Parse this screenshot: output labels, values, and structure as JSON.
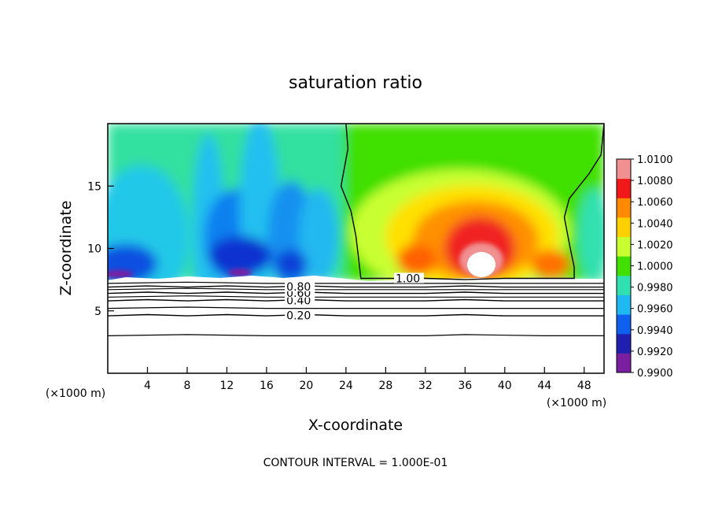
{
  "chart_data": {
    "type": "heatmap",
    "title": "saturation ratio",
    "xlabel": "X-coordinate",
    "ylabel": "Z-coordinate",
    "x_unit_left": "(×1000 m)",
    "x_unit_right": "(×1000 m)",
    "xlim": [
      0,
      50
    ],
    "ylim": [
      0,
      20
    ],
    "x_ticks": [
      4,
      8,
      12,
      16,
      20,
      24,
      28,
      32,
      36,
      40,
      44,
      48
    ],
    "y_ticks": [
      5,
      10,
      15
    ],
    "footer": "CONTOUR INTERVAL = 1.000E-01",
    "colorbar": {
      "levels": [
        "1.0100",
        "1.0080",
        "1.0060",
        "1.0040",
        "1.0020",
        "1.0000",
        "0.9980",
        "0.9960",
        "0.9940",
        "0.9920",
        "0.9900"
      ],
      "colors": [
        "#7a1fa0",
        "#2020b0",
        "#1060f0",
        "#20b8f0",
        "#30e0b0",
        "#40e000",
        "#c8ff30",
        "#ffd000",
        "#ff8a00",
        "#f01818",
        "#f09090"
      ]
    },
    "contours": [
      {
        "label": "0.20",
        "x_label": 18,
        "points": [
          [
            0,
            4.6
          ],
          [
            4,
            4.7
          ],
          [
            8,
            4.6
          ],
          [
            12,
            4.7
          ],
          [
            16,
            4.6
          ],
          [
            20,
            4.7
          ],
          [
            24,
            4.6
          ],
          [
            28,
            4.6
          ],
          [
            32,
            4.6
          ],
          [
            36,
            4.7
          ],
          [
            40,
            4.6
          ],
          [
            44,
            4.6
          ],
          [
            48,
            4.6
          ],
          [
            50,
            4.6
          ]
        ]
      },
      {
        "label": "0.40",
        "x_label": 18,
        "points": [
          [
            0,
            5.8
          ],
          [
            4,
            5.9
          ],
          [
            8,
            5.8
          ],
          [
            12,
            5.9
          ],
          [
            16,
            5.8
          ],
          [
            20,
            5.9
          ],
          [
            24,
            5.8
          ],
          [
            28,
            5.8
          ],
          [
            32,
            5.8
          ],
          [
            36,
            5.9
          ],
          [
            40,
            5.8
          ],
          [
            44,
            5.8
          ],
          [
            48,
            5.8
          ],
          [
            50,
            5.8
          ]
        ]
      },
      {
        "label": "0.60",
        "x_label": 18,
        "points": [
          [
            0,
            6.4
          ],
          [
            4,
            6.5
          ],
          [
            8,
            6.4
          ],
          [
            12,
            6.5
          ],
          [
            16,
            6.4
          ],
          [
            20,
            6.5
          ],
          [
            24,
            6.4
          ],
          [
            28,
            6.4
          ],
          [
            32,
            6.4
          ],
          [
            36,
            6.5
          ],
          [
            40,
            6.4
          ],
          [
            44,
            6.4
          ],
          [
            48,
            6.4
          ],
          [
            50,
            6.4
          ]
        ]
      },
      {
        "label": "0.80",
        "x_label": 18,
        "points": [
          [
            0,
            6.9
          ],
          [
            4,
            7.0
          ],
          [
            8,
            6.9
          ],
          [
            12,
            7.0
          ],
          [
            16,
            6.9
          ],
          [
            20,
            7.0
          ],
          [
            24,
            6.9
          ],
          [
            28,
            6.9
          ],
          [
            32,
            6.9
          ],
          [
            36,
            7.0
          ],
          [
            40,
            6.9
          ],
          [
            44,
            6.9
          ],
          [
            48,
            6.9
          ],
          [
            50,
            6.9
          ]
        ]
      },
      {
        "label": "1.00",
        "x_label": 29,
        "points": [
          [
            24,
            20
          ],
          [
            24.2,
            18
          ],
          [
            23.5,
            15
          ],
          [
            24.5,
            13
          ],
          [
            25,
            11
          ],
          [
            25.3,
            9
          ],
          [
            25.5,
            7.6
          ],
          [
            28,
            7.6
          ],
          [
            32,
            7.6
          ],
          [
            36,
            7.5
          ],
          [
            40,
            7.6
          ],
          [
            44,
            7.6
          ],
          [
            47,
            7.6
          ],
          [
            47,
            8.5
          ],
          [
            46.6,
            10
          ],
          [
            46,
            12.5
          ],
          [
            46.5,
            14
          ],
          [
            47.5,
            15
          ],
          [
            48.5,
            16
          ],
          [
            49.7,
            17.5
          ],
          [
            50,
            20
          ]
        ]
      }
    ],
    "unlabeled_contours": [
      {
        "points": [
          [
            0,
            3.0
          ],
          [
            8,
            3.1
          ],
          [
            16,
            3.0
          ],
          [
            24,
            3.0
          ],
          [
            32,
            3.0
          ],
          [
            36,
            3.1
          ],
          [
            44,
            3.0
          ],
          [
            50,
            3.0
          ]
        ]
      },
      {
        "points": [
          [
            0,
            5.2
          ],
          [
            8,
            5.3
          ],
          [
            16,
            5.2
          ],
          [
            24,
            5.2
          ],
          [
            32,
            5.2
          ],
          [
            40,
            5.2
          ],
          [
            50,
            5.2
          ]
        ]
      },
      {
        "points": [
          [
            0,
            6.1
          ],
          [
            8,
            6.2
          ],
          [
            16,
            6.1
          ],
          [
            24,
            6.1
          ],
          [
            32,
            6.1
          ],
          [
            40,
            6.1
          ],
          [
            50,
            6.1
          ]
        ]
      },
      {
        "points": [
          [
            0,
            6.7
          ],
          [
            8,
            6.8
          ],
          [
            16,
            6.7
          ],
          [
            24,
            6.7
          ],
          [
            32,
            6.7
          ],
          [
            40,
            6.7
          ],
          [
            50,
            6.7
          ]
        ]
      },
      {
        "points": [
          [
            0,
            7.2
          ],
          [
            8,
            7.3
          ],
          [
            16,
            7.2
          ],
          [
            24,
            7.2
          ],
          [
            32,
            7.2
          ],
          [
            40,
            7.2
          ],
          [
            50,
            7.2
          ]
        ]
      }
    ]
  }
}
